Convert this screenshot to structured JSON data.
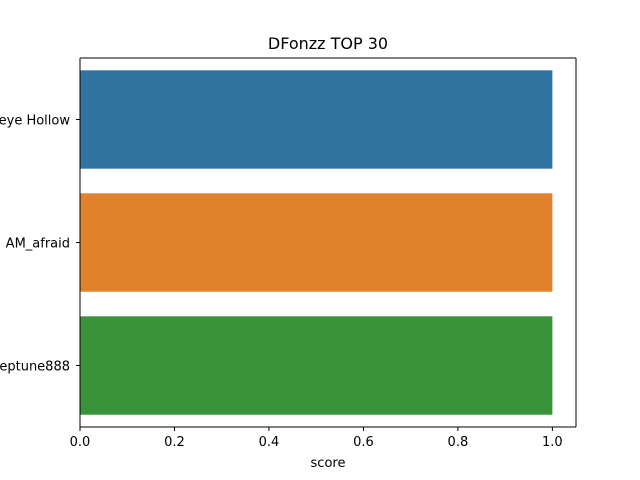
{
  "chart_data": {
    "type": "bar",
    "orientation": "horizontal",
    "title": "DFonzz TOP 30",
    "xlabel": "score",
    "ylabel": "",
    "categories": [
      "eye Hollow",
      "AM_afraid",
      "eptune888"
    ],
    "values": [
      1.0,
      1.0,
      1.0
    ],
    "colors": [
      "#3274a1",
      "#e1812c",
      "#3a923a"
    ],
    "xlim": [
      0,
      1.05
    ],
    "xticks": [
      "0.0",
      "0.2",
      "0.4",
      "0.6",
      "0.8",
      "1.0"
    ],
    "xtick_values": [
      0,
      0.2,
      0.4,
      0.6,
      0.8,
      1.0
    ],
    "grid": false
  }
}
